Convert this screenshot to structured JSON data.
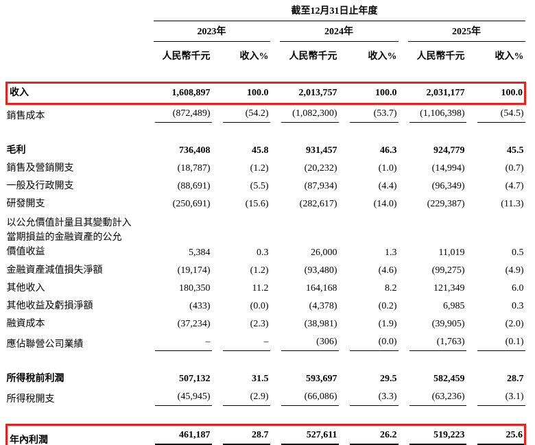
{
  "colors": {
    "highlight_box": "#e3231c",
    "text": "#000000",
    "background": "#ffffff"
  },
  "header": {
    "period_title": "截至12月31日止年度",
    "years": [
      "2023年",
      "2024年",
      "2025年"
    ],
    "amount_label": "人民幣千元",
    "percent_label": "收入%"
  },
  "table": {
    "rows": [
      {
        "label": "收入",
        "values": [
          "1,608,897",
          "100.0",
          "2,013,757",
          "100.0",
          "2,031,177",
          "100.0"
        ],
        "bold": true,
        "box": true
      },
      {
        "label": "銷售成本",
        "values": [
          "(872,489)",
          "(54.2)",
          "(1,082,300)",
          "(53.7)",
          "(1,106,398)",
          "(54.5)"
        ],
        "rule": true
      },
      {
        "type": "spacer"
      },
      {
        "label": "毛利",
        "values": [
          "736,408",
          "45.8",
          "931,457",
          "46.3",
          "924,779",
          "45.5"
        ],
        "bold": true
      },
      {
        "label": "銷售及營銷開支",
        "values": [
          "(18,787)",
          "(1.2)",
          "(20,232)",
          "(1.0)",
          "(14,994)",
          "(0.7)"
        ]
      },
      {
        "label": "一般及行政開支",
        "values": [
          "(88,691)",
          "(5.5)",
          "(87,934)",
          "(4.4)",
          "(96,349)",
          "(4.7)"
        ]
      },
      {
        "label": "研發開支",
        "values": [
          "(250,691)",
          "(15.6)",
          "(282,617)",
          "(14.0)",
          "(229,387)",
          "(11.3)"
        ]
      },
      {
        "label": "以公允價值計量且其變動計入\n當期損益的金融資產的公允\n價值收益",
        "values": [
          "5,384",
          "0.3",
          "26,000",
          "1.3",
          "11,019",
          "0.5"
        ],
        "multi": true
      },
      {
        "label": "金融資產減值損失淨額",
        "values": [
          "(19,174)",
          "(1.2)",
          "(93,480)",
          "(4.6)",
          "(99,275)",
          "(4.9)"
        ]
      },
      {
        "label": "其他收入",
        "values": [
          "180,350",
          "11.2",
          "164,168",
          "8.2",
          "121,349",
          "6.0"
        ]
      },
      {
        "label": "其他收益及虧損淨額",
        "values": [
          "(433)",
          "(0.0)",
          "(4,378)",
          "(0.2)",
          "6,985",
          "0.3"
        ]
      },
      {
        "label": "融資成本",
        "values": [
          "(37,234)",
          "(2.3)",
          "(38,981)",
          "(1.9)",
          "(39,905)",
          "(2.0)"
        ]
      },
      {
        "label": "應佔聯營公司業績",
        "values": [
          "–",
          "–",
          "(306)",
          "(0.0)",
          "(1,763)",
          "(0.1)"
        ],
        "rule": true
      },
      {
        "type": "spacer"
      },
      {
        "label": "所得稅前利潤",
        "values": [
          "507,132",
          "31.5",
          "593,697",
          "29.5",
          "582,459",
          "28.7"
        ],
        "bold": true
      },
      {
        "label": "所得稅開支",
        "values": [
          "(45,945)",
          "(2.9)",
          "(66,086)",
          "(3.3)",
          "(63,236)",
          "(3.1)"
        ],
        "rule": true
      },
      {
        "type": "spacer"
      },
      {
        "label": "年內利潤",
        "values": [
          "461,187",
          "28.7",
          "527,611",
          "26.2",
          "519,223",
          "25.6"
        ],
        "bold": true,
        "box": true,
        "dbl": true
      }
    ]
  }
}
